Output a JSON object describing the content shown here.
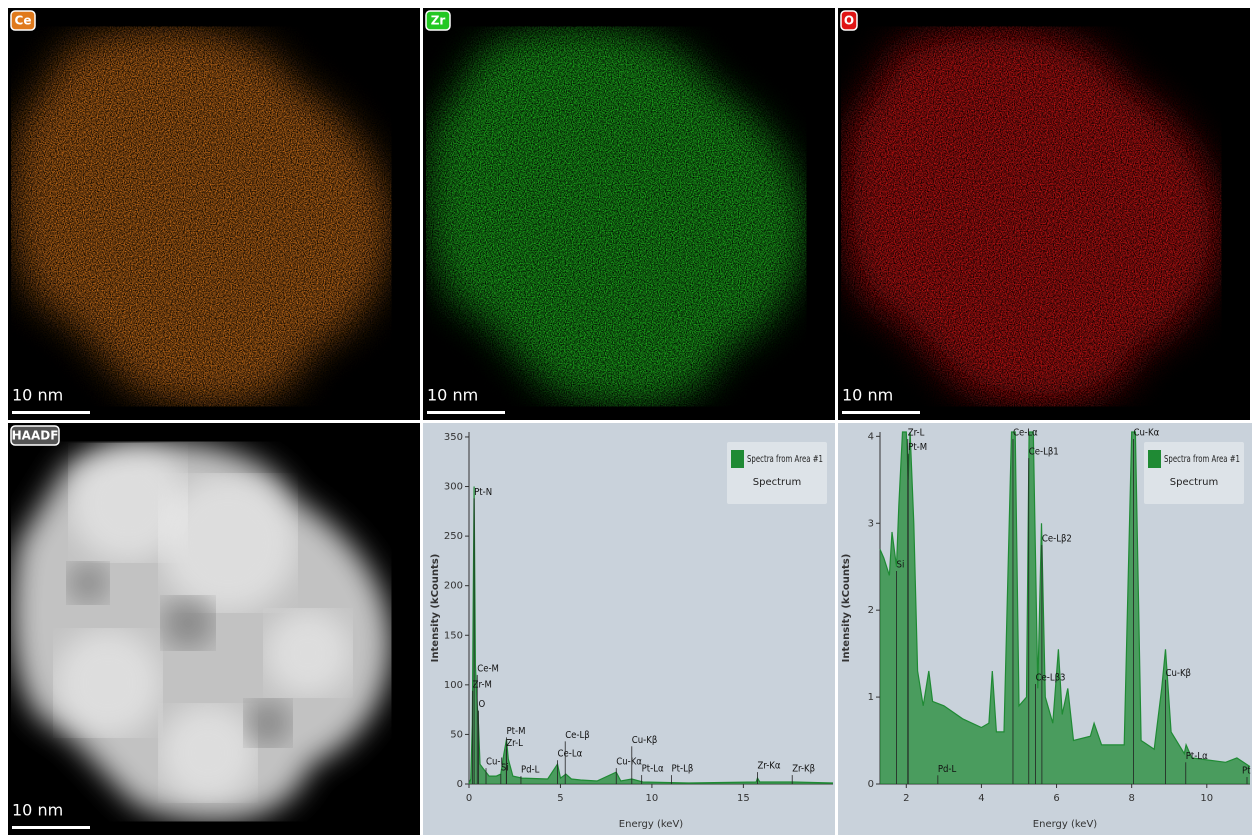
{
  "maps": [
    {
      "label": "Ce",
      "color": "#e07a1c",
      "scale_bar": "10 nm"
    },
    {
      "label": "Zr",
      "color": "#22c822",
      "scale_bar": "10 nm"
    },
    {
      "label": "O",
      "color": "#e01414",
      "scale_bar": "10 nm"
    },
    {
      "label": "HAADF",
      "color": "#d8d8d8",
      "scale_bar": "10 nm"
    }
  ],
  "chart_data": [
    {
      "type": "line",
      "xlabel": "Energy (keV)",
      "ylabel": "Intensity (kCounts)",
      "xlim": [
        0,
        19.9
      ],
      "ylim": [
        0,
        355
      ],
      "xticks": [
        0,
        5,
        10,
        15
      ],
      "yticks": [
        0,
        50,
        100,
        150,
        200,
        250,
        300,
        350
      ],
      "legend": "top-right",
      "legend_title": "Spectra from Area #1",
      "series": [
        {
          "name": "Spectrum",
          "color": "#1f8a34",
          "x": [
            0,
            0.1,
            0.18,
            0.28,
            0.35,
            0.45,
            0.52,
            0.6,
            0.8,
            0.93,
            1.1,
            1.5,
            1.74,
            1.9,
            2.05,
            2.15,
            2.4,
            2.9,
            4.3,
            4.84,
            5.0,
            5.3,
            5.6,
            6.1,
            7,
            8.05,
            8.3,
            8.9,
            9.5,
            12,
            15.7,
            15.77,
            15.9,
            17.7,
            19.9
          ],
          "values": [
            0,
            5,
            60,
            300,
            120,
            80,
            60,
            20,
            15,
            12,
            8,
            8,
            10,
            30,
            45,
            25,
            8,
            6,
            5,
            20,
            6,
            10,
            5,
            4,
            3,
            12,
            3,
            5,
            2,
            1,
            2,
            6,
            2,
            2,
            1
          ]
        }
      ],
      "annotations": [
        {
          "text": "Pt-N",
          "x": 0.28,
          "y": 288
        },
        {
          "text": "Ce-M",
          "x": 0.45,
          "y": 110
        },
        {
          "text": "Zr-M",
          "x": 0.2,
          "y": 94
        },
        {
          "text": "O",
          "x": 0.52,
          "y": 74
        },
        {
          "text": "Pt-M",
          "x": 2.05,
          "y": 47
        },
        {
          "text": "Zr-L",
          "x": 2.04,
          "y": 35
        },
        {
          "text": "Cu-L",
          "x": 0.93,
          "y": 16
        },
        {
          "text": "Si",
          "x": 1.74,
          "y": 10
        },
        {
          "text": "Pd-L",
          "x": 2.84,
          "y": 8
        },
        {
          "text": "Ce-Lα",
          "x": 4.84,
          "y": 24
        },
        {
          "text": "Ce-Lβ",
          "x": 5.26,
          "y": 43
        },
        {
          "text": "Cu-Kα",
          "x": 8.05,
          "y": 16
        },
        {
          "text": "Cu-Kβ",
          "x": 8.9,
          "y": 38
        },
        {
          "text": "Pt-Lα",
          "x": 9.44,
          "y": 9
        },
        {
          "text": "Pt-Lβ",
          "x": 11.07,
          "y": 9
        },
        {
          "text": "Zr-Kα",
          "x": 15.77,
          "y": 12
        },
        {
          "text": "Zr-Kβ",
          "x": 17.67,
          "y": 9
        }
      ]
    },
    {
      "type": "line",
      "xlabel": "Energy (keV)",
      "ylabel": "Intensity (kCounts)",
      "xlim": [
        1.3,
        11.15
      ],
      "ylim": [
        0,
        4.05
      ],
      "xticks": [
        2,
        4,
        6,
        8,
        10
      ],
      "yticks": [
        0,
        1,
        2,
        3,
        4
      ],
      "legend": "top-right",
      "legend_title": "Spectra from Area #1",
      "series": [
        {
          "name": "Spectrum",
          "color": "#1f8a34",
          "x": [
            1.3,
            1.4,
            1.55,
            1.62,
            1.74,
            1.8,
            1.9,
            2.0,
            2.05,
            2.1,
            2.2,
            2.3,
            2.45,
            2.6,
            2.7,
            3.0,
            3.5,
            4.0,
            4.2,
            4.29,
            4.4,
            4.6,
            4.8,
            4.9,
            5.0,
            5.2,
            5.27,
            5.38,
            5.5,
            5.6,
            5.7,
            5.9,
            6.05,
            6.15,
            6.3,
            6.45,
            6.9,
            7.0,
            7.2,
            7.8,
            8.0,
            8.1,
            8.25,
            8.6,
            8.8,
            8.9,
            9.05,
            9.4,
            9.45,
            9.6,
            10.5,
            10.8,
            11.15
          ],
          "values": [
            2.7,
            2.6,
            2.4,
            2.9,
            2.5,
            3.2,
            4.05,
            4.05,
            3.5,
            4.05,
            3.0,
            1.3,
            0.9,
            1.3,
            0.95,
            0.9,
            0.75,
            0.65,
            0.7,
            1.3,
            0.6,
            0.6,
            4.05,
            4.05,
            0.9,
            1.0,
            4.05,
            4.05,
            1.1,
            3.0,
            1.0,
            0.7,
            1.55,
            0.8,
            1.1,
            0.5,
            0.55,
            0.7,
            0.45,
            0.45,
            4.05,
            4.05,
            0.5,
            0.4,
            1.1,
            1.55,
            0.6,
            0.35,
            0.45,
            0.3,
            0.25,
            0.3,
            0.2
          ]
        }
      ],
      "annotations": [
        {
          "text": "Zr-L",
          "x": 2.04,
          "y": 3.97
        },
        {
          "text": "Pt-M",
          "x": 2.05,
          "y": 3.8
        },
        {
          "text": "Si",
          "x": 1.74,
          "y": 2.45
        },
        {
          "text": "Pd-L",
          "x": 2.84,
          "y": 0.1
        },
        {
          "text": "Ce-Lα",
          "x": 4.84,
          "y": 3.97
        },
        {
          "text": "Ce-Lβ1",
          "x": 5.26,
          "y": 3.75
        },
        {
          "text": "Ce-Lβ2",
          "x": 5.61,
          "y": 2.75
        },
        {
          "text": "Ce-Lβ3",
          "x": 5.44,
          "y": 1.15
        },
        {
          "text": "Cu-Kα",
          "x": 8.05,
          "y": 3.97
        },
        {
          "text": "Cu-Kβ",
          "x": 8.9,
          "y": 1.2
        },
        {
          "text": "Pt-Lα",
          "x": 9.44,
          "y": 0.25
        },
        {
          "text": "Pt",
          "x": 11.07,
          "y": 0.08
        }
      ]
    }
  ]
}
